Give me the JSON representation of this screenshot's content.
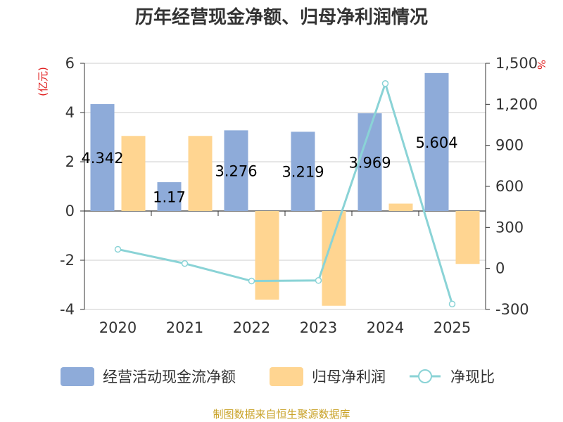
{
  "title": "历年经营现金净额、归母净利润情况",
  "source": "制图数据来自恒生聚源数据库",
  "colors": {
    "cash": "#8eabd9",
    "profit": "#ffd591",
    "ratio": "#8ad3d6",
    "axis": "#333333",
    "grid": "#cccccc",
    "unit": "#e01b1b",
    "source": "#c9a227"
  },
  "legend": [
    "经营活动现金流净额",
    "归母净利润",
    "净现比"
  ],
  "chart_data": {
    "type": "bar",
    "title": "历年经营现金净额、归母净利润情况",
    "categories": [
      "2020",
      "2021",
      "2022",
      "2023",
      "2024",
      "2025"
    ],
    "series": [
      {
        "name": "经营活动现金流净额",
        "type": "bar",
        "axis": "left",
        "values": [
          4.342,
          1.17,
          3.276,
          3.219,
          3.969,
          5.604
        ],
        "labels": [
          "4.342",
          "1.17",
          "3.276",
          "3.219",
          "3.969",
          "5.604"
        ]
      },
      {
        "name": "归母净利润",
        "type": "bar",
        "axis": "left",
        "values": [
          3.05,
          3.05,
          -3.6,
          -3.85,
          0.3,
          -2.15
        ]
      },
      {
        "name": "净现比",
        "type": "line",
        "axis": "right",
        "values": [
          140,
          36,
          -92,
          -88,
          1352,
          -260
        ]
      }
    ],
    "y_left": {
      "label": "(亿元)",
      "range": [
        -4,
        6
      ],
      "ticks": [
        "6",
        "4",
        "2",
        "0",
        "-2",
        "-4"
      ],
      "tick_values": [
        6,
        4,
        2,
        0,
        -2,
        -4
      ]
    },
    "y_right": {
      "label": "%",
      "range": [
        -300,
        1500
      ],
      "ticks": [
        "1,500",
        "1,200",
        "900",
        "600",
        "300",
        "0",
        "-300"
      ],
      "tick_values": [
        1500,
        1200,
        900,
        600,
        300,
        0,
        -300
      ]
    },
    "grid": true,
    "legend_position": "bottom"
  }
}
